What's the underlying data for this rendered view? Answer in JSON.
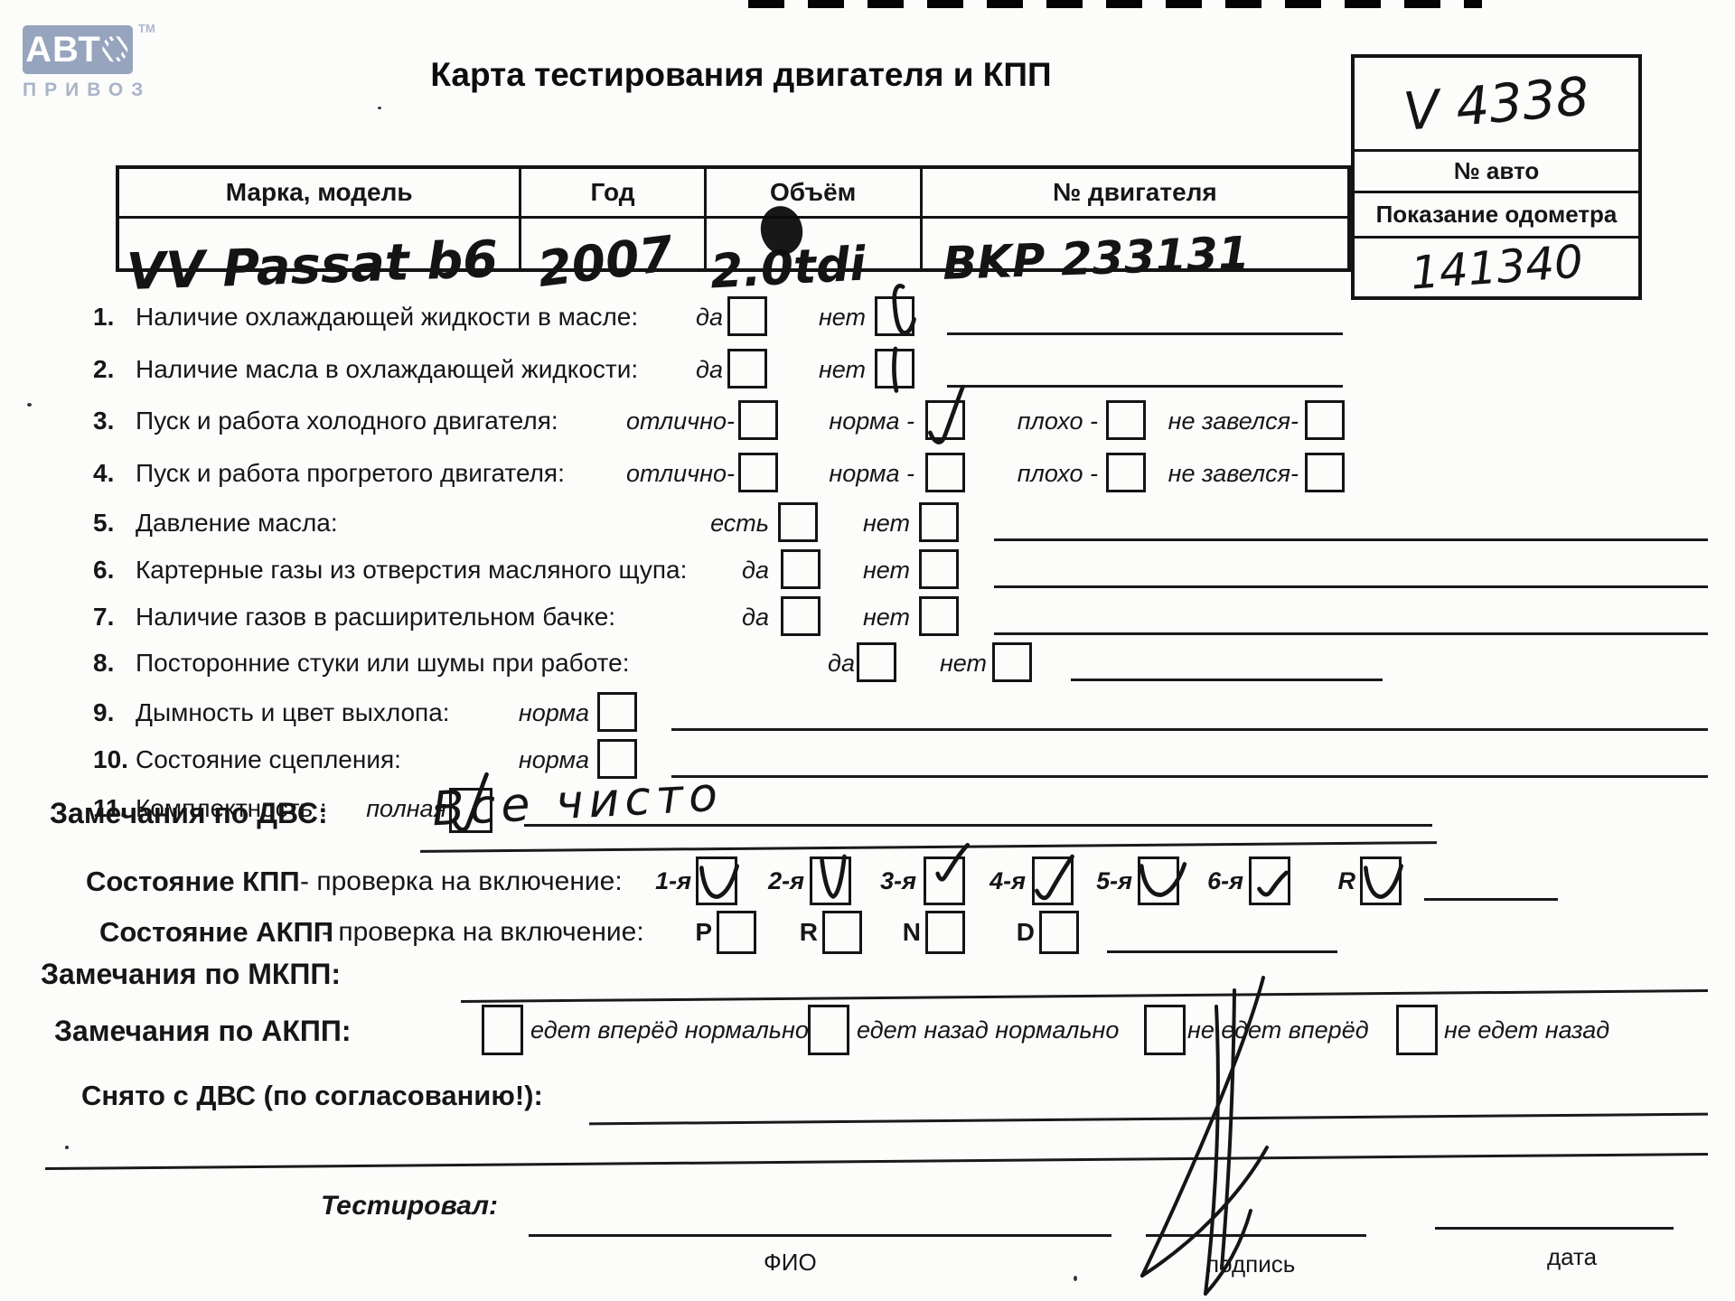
{
  "logo": {
    "brand": "АВТ",
    "brand_o": "О",
    "tm": "ТМ",
    "sub": "ПРИВОЗ"
  },
  "title": "Карта тестирования двигателя  и КПП",
  "auto_box": {
    "number_value": "V 4338",
    "number_label": "№ авто",
    "odometer_label": "Показание одометра",
    "odometer_value": "141340"
  },
  "vehicle_table": {
    "headers": [
      "Марка, модель",
      "Год",
      "Объём",
      "№ двигателя"
    ],
    "values": [
      "VV Passat b6",
      "2007",
      "2.0tdi",
      "BKP 233131"
    ]
  },
  "items": [
    {
      "num": "1.",
      "label": "Наличие охлаждающей жидкости в масле:",
      "options": [
        {
          "label": "да",
          "checked": false
        },
        {
          "label": "нет",
          "checked": true
        }
      ]
    },
    {
      "num": "2.",
      "label": "Наличие масла в охлаждающей жидкости:",
      "options": [
        {
          "label": "да",
          "checked": false
        },
        {
          "label": "нет",
          "checked": true
        }
      ]
    },
    {
      "num": "3.",
      "label": "Пуск и работа холодного двигателя:",
      "options": [
        {
          "label": "отлично-",
          "checked": false
        },
        {
          "label": "норма -",
          "checked": true
        },
        {
          "label": "плохо -",
          "checked": false
        },
        {
          "label": "не завелся-",
          "checked": false
        }
      ]
    },
    {
      "num": "4.",
      "label": "Пуск и работа прогретого двигателя:",
      "options": [
        {
          "label": "отлично-",
          "checked": false
        },
        {
          "label": "норма -",
          "checked": false
        },
        {
          "label": "плохо -",
          "checked": false
        },
        {
          "label": "не завелся-",
          "checked": false
        }
      ]
    },
    {
      "num": "5.",
      "label": "Давление масла:",
      "options": [
        {
          "label": "есть",
          "checked": false
        },
        {
          "label": "нет",
          "checked": false
        }
      ]
    },
    {
      "num": "6.",
      "label": "Картерные газы из отверстия масляного щупа:",
      "options": [
        {
          "label": "да",
          "checked": false
        },
        {
          "label": "нет",
          "checked": false
        }
      ]
    },
    {
      "num": "7.",
      "label": "Наличие газов в расширительном бачке:",
      "options": [
        {
          "label": "да",
          "checked": false
        },
        {
          "label": "нет",
          "checked": false
        }
      ]
    },
    {
      "num": "8.",
      "label": "Посторонние стуки или шумы при работе:",
      "options": [
        {
          "label": "да",
          "checked": false
        },
        {
          "label": "нет",
          "checked": false
        }
      ]
    },
    {
      "num": "9.",
      "label": "Дымность и цвет выхлопа:",
      "options": [
        {
          "label": "норма",
          "checked": false
        }
      ]
    },
    {
      "num": "10.",
      "label": "Состояние сцепления:",
      "options": [
        {
          "label": "норма",
          "checked": false
        }
      ]
    },
    {
      "num": "11.",
      "label": "Комплектность :",
      "options": [
        {
          "label": "полная",
          "checked": true
        }
      ]
    }
  ],
  "dvs": {
    "label": "Замечания по ДВС:",
    "note": "Все  чисто"
  },
  "kpp": {
    "bold": "Состояние КПП",
    "rest": " - проверка на включение:",
    "gears": [
      {
        "label": "1-я",
        "checked": true
      },
      {
        "label": "2-я",
        "checked": true
      },
      {
        "label": "3-я",
        "checked": true
      },
      {
        "label": "4-я",
        "checked": true
      },
      {
        "label": "5-я",
        "checked": true
      },
      {
        "label": "6-я",
        "checked": true
      },
      {
        "label": "R",
        "checked": true
      }
    ]
  },
  "akpp": {
    "bold": "Состояние АКПП",
    "rest": " - проверка на включение:",
    "gears": [
      {
        "label": "P",
        "checked": false
      },
      {
        "label": "R",
        "checked": false
      },
      {
        "label": "N",
        "checked": false
      },
      {
        "label": "D",
        "checked": false
      }
    ]
  },
  "mkpp": {
    "label": "Замечания по МКПП:"
  },
  "akpp_remarks": {
    "label": "Замечания по АКПП:",
    "options": [
      {
        "label": "едет вперёд нормально",
        "checked": false
      },
      {
        "label": "едет назад нормально",
        "checked": false
      },
      {
        "label": "не едет вперёд",
        "checked": false
      },
      {
        "label": "не едет назад",
        "checked": false
      }
    ]
  },
  "snato": {
    "label": "Снято с ДВС (по согласованию!):"
  },
  "footer": {
    "tested": "Тестировал:",
    "fio": "ФИО",
    "sign": "подпись",
    "date": "дата"
  }
}
